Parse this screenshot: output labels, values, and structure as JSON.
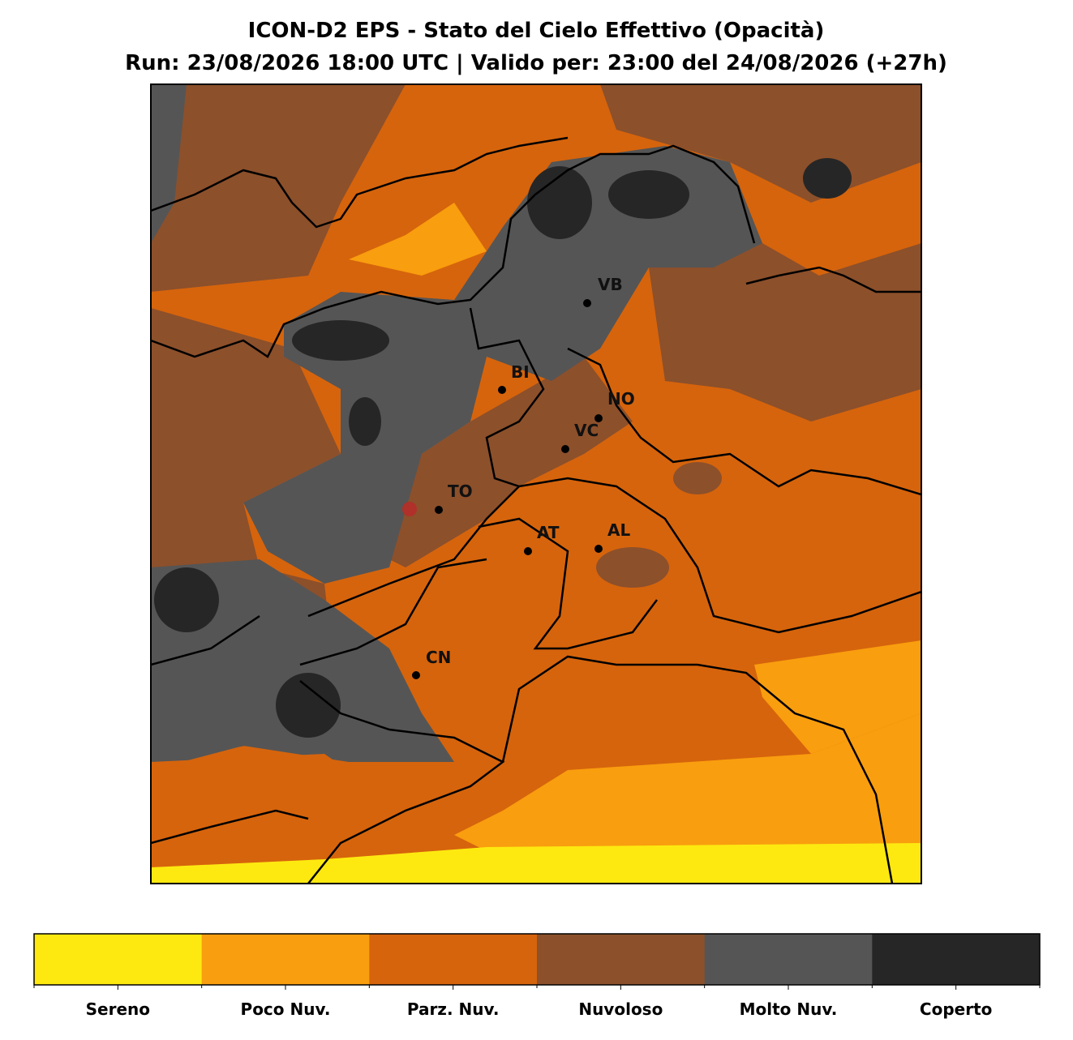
{
  "header": {
    "title": "ICON-D2 EPS - Stato del Cielo Effettivo (Opacità)",
    "subtitle": "Run: 23/08/2026 18:00 UTC | Valido per: 23:00 del 24/08/2026 (+27h)"
  },
  "map": {
    "cities": [
      "VB",
      "BI",
      "NO",
      "VC",
      "TO",
      "AT",
      "AL",
      "CN"
    ]
  },
  "legend": {
    "categories": [
      "Sereno",
      "Poco Nuv.",
      "Parz. Nuv.",
      "Nuvoloso",
      "Molto Nuv.",
      "Coperto"
    ],
    "colors": [
      "#fde910",
      "#f99e0e",
      "#d6640c",
      "#8c502b",
      "#555555",
      "#262626"
    ]
  }
}
